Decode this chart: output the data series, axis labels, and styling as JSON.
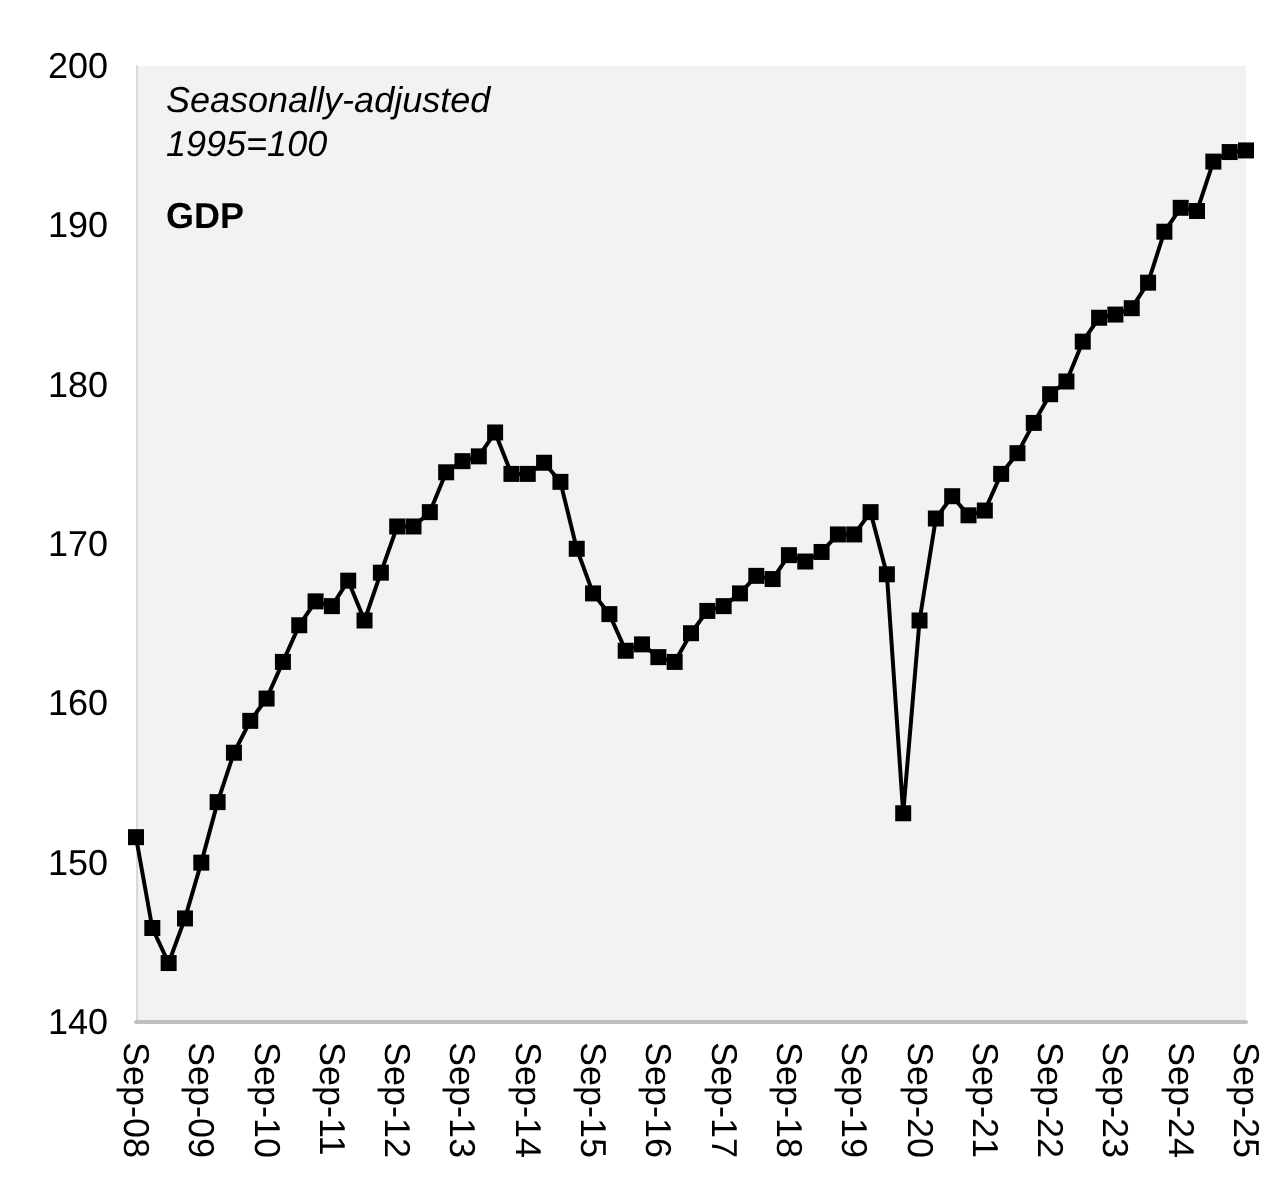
{
  "chart_data": {
    "type": "line",
    "title": "GDP",
    "subtitle": "Seasonally-adjusted\n1995=100",
    "categories": [
      "Sep-08",
      null,
      null,
      null,
      "Sep-09",
      null,
      null,
      null,
      "Sep-10",
      null,
      null,
      null,
      "Sep-11",
      null,
      null,
      null,
      "Sep-12",
      null,
      null,
      null,
      "Sep-13",
      null,
      null,
      null,
      "Sep-14",
      null,
      null,
      null,
      "Sep-15",
      null,
      null,
      null,
      "Sep-16",
      null,
      null,
      null,
      "Sep-17",
      null,
      null,
      null,
      "Sep-18",
      null,
      null,
      null,
      "Sep-19",
      null,
      null,
      null,
      "Sep-20",
      null,
      null,
      null,
      "Sep-21",
      null,
      null,
      null,
      "Sep-22",
      null,
      null,
      null,
      "Sep-23",
      null,
      null,
      null,
      "Sep-24",
      null,
      null,
      null,
      "Sep-25"
    ],
    "series": [
      {
        "color": "#000000",
        "values": [
          151.6,
          145.9,
          143.7,
          146.5,
          150.0,
          153.8,
          156.9,
          158.9,
          160.3,
          162.6,
          164.9,
          166.4,
          166.1,
          167.7,
          165.2,
          168.2,
          171.1,
          171.1,
          172.0,
          174.5,
          175.2,
          175.5,
          177.0,
          174.4,
          174.4,
          175.1,
          173.9,
          169.7,
          166.9,
          165.6,
          163.3,
          163.7,
          162.9,
          162.6,
          164.4,
          165.8,
          166.1,
          166.9,
          168.0,
          167.8,
          169.3,
          168.9,
          169.5,
          170.6,
          170.6,
          172.0,
          168.1,
          153.1,
          165.2,
          171.6,
          173.0,
          171.8,
          172.1,
          174.4,
          175.7,
          177.6,
          179.4,
          180.2,
          182.7,
          184.2,
          184.4,
          184.8,
          186.4,
          189.6,
          191.1,
          190.9,
          194.0,
          194.6,
          194.7
        ]
      }
    ],
    "ylim": [
      140,
      200
    ],
    "yticks": [
      140,
      150,
      160,
      170,
      180,
      190,
      200
    ],
    "grid": false,
    "marker": "square",
    "line_style": "solid"
  }
}
